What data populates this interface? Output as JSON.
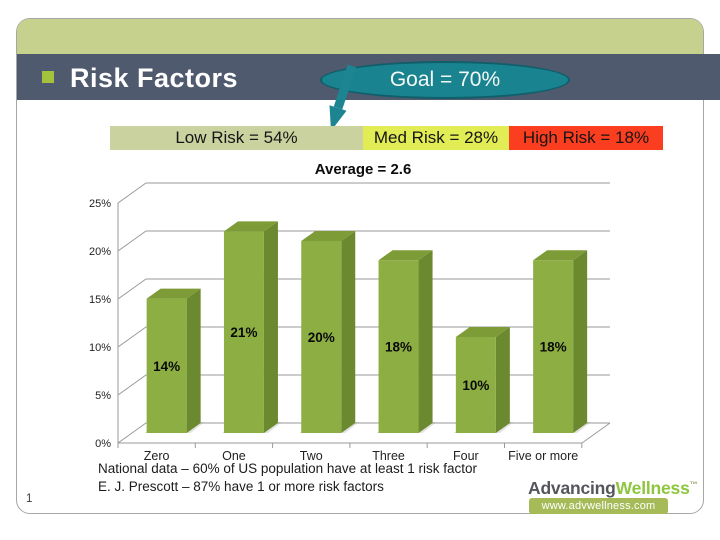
{
  "slide": {
    "page_number": "1",
    "title": "Risk Factors",
    "goal_label": "Goal = 70%",
    "risk_bands": [
      {
        "label": "Low Risk = 54%",
        "color": "#cad3a0"
      },
      {
        "label": "Med Risk = 28%",
        "color": "#e2ec55"
      },
      {
        "label": "High Risk = 18%",
        "color": "#fb3e1f"
      }
    ],
    "footnotes": [
      "National data – 60% of US population have at least 1 risk factor",
      "E. J. Prescott – 87% have 1 or more risk factors"
    ],
    "logo": {
      "part1": "Advancing",
      "part2": "Wellness",
      "tm": "™",
      "url": "www.advwellness.com"
    },
    "theme_colors": {
      "header_bar": "#4f5a6e",
      "top_band": "#c5d18c",
      "bullet": "#a4c23c",
      "goal_ellipse": "#1a8390"
    }
  },
  "chart_data": {
    "type": "bar",
    "title": "Average = 2.6",
    "categories": [
      "Zero",
      "One",
      "Two",
      "Three",
      "Four",
      "Five or more"
    ],
    "values": [
      14,
      21,
      20,
      18,
      10,
      18
    ],
    "bar_labels": [
      "14%",
      "21%",
      "20%",
      "18%",
      "10%",
      "18%"
    ],
    "xlabel": "",
    "ylabel": "",
    "ylim": [
      0,
      25
    ],
    "yticks": [
      "0%",
      "5%",
      "10%",
      "15%",
      "20%",
      "25%"
    ],
    "grid": true,
    "legend": "none",
    "style": "3d-column",
    "bar_colors": {
      "front": "#8dae43",
      "top": "#7d9b36",
      "side": "#6b892e"
    },
    "gridline_color": "#9a9a9a"
  }
}
